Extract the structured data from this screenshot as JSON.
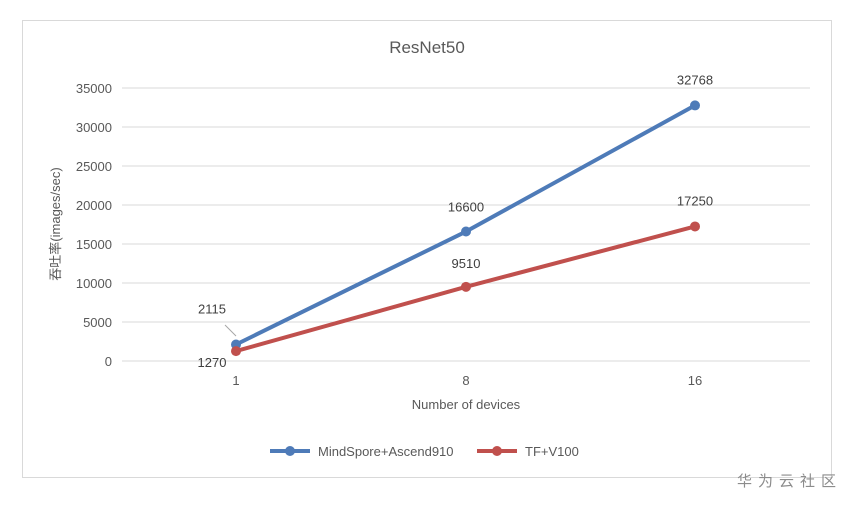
{
  "chart_data": {
    "type": "line",
    "title": "ResNet50",
    "xlabel": "Number of devices",
    "ylabel": "吞吐率(images/sec)",
    "categories": [
      "1",
      "8",
      "16"
    ],
    "ylim": [
      0,
      35000
    ],
    "yticks": [
      0,
      5000,
      10000,
      15000,
      20000,
      25000,
      30000,
      35000
    ],
    "grid": true,
    "legend_position": "bottom",
    "series": [
      {
        "name": "MindSpore+Ascend910",
        "color": "#4e7bb8",
        "values": [
          2115,
          16600,
          32768
        ]
      },
      {
        "name": "TF+V100",
        "color": "#c0504d",
        "values": [
          1270,
          9510,
          17250
        ]
      }
    ]
  },
  "watermark": "华为云社区"
}
